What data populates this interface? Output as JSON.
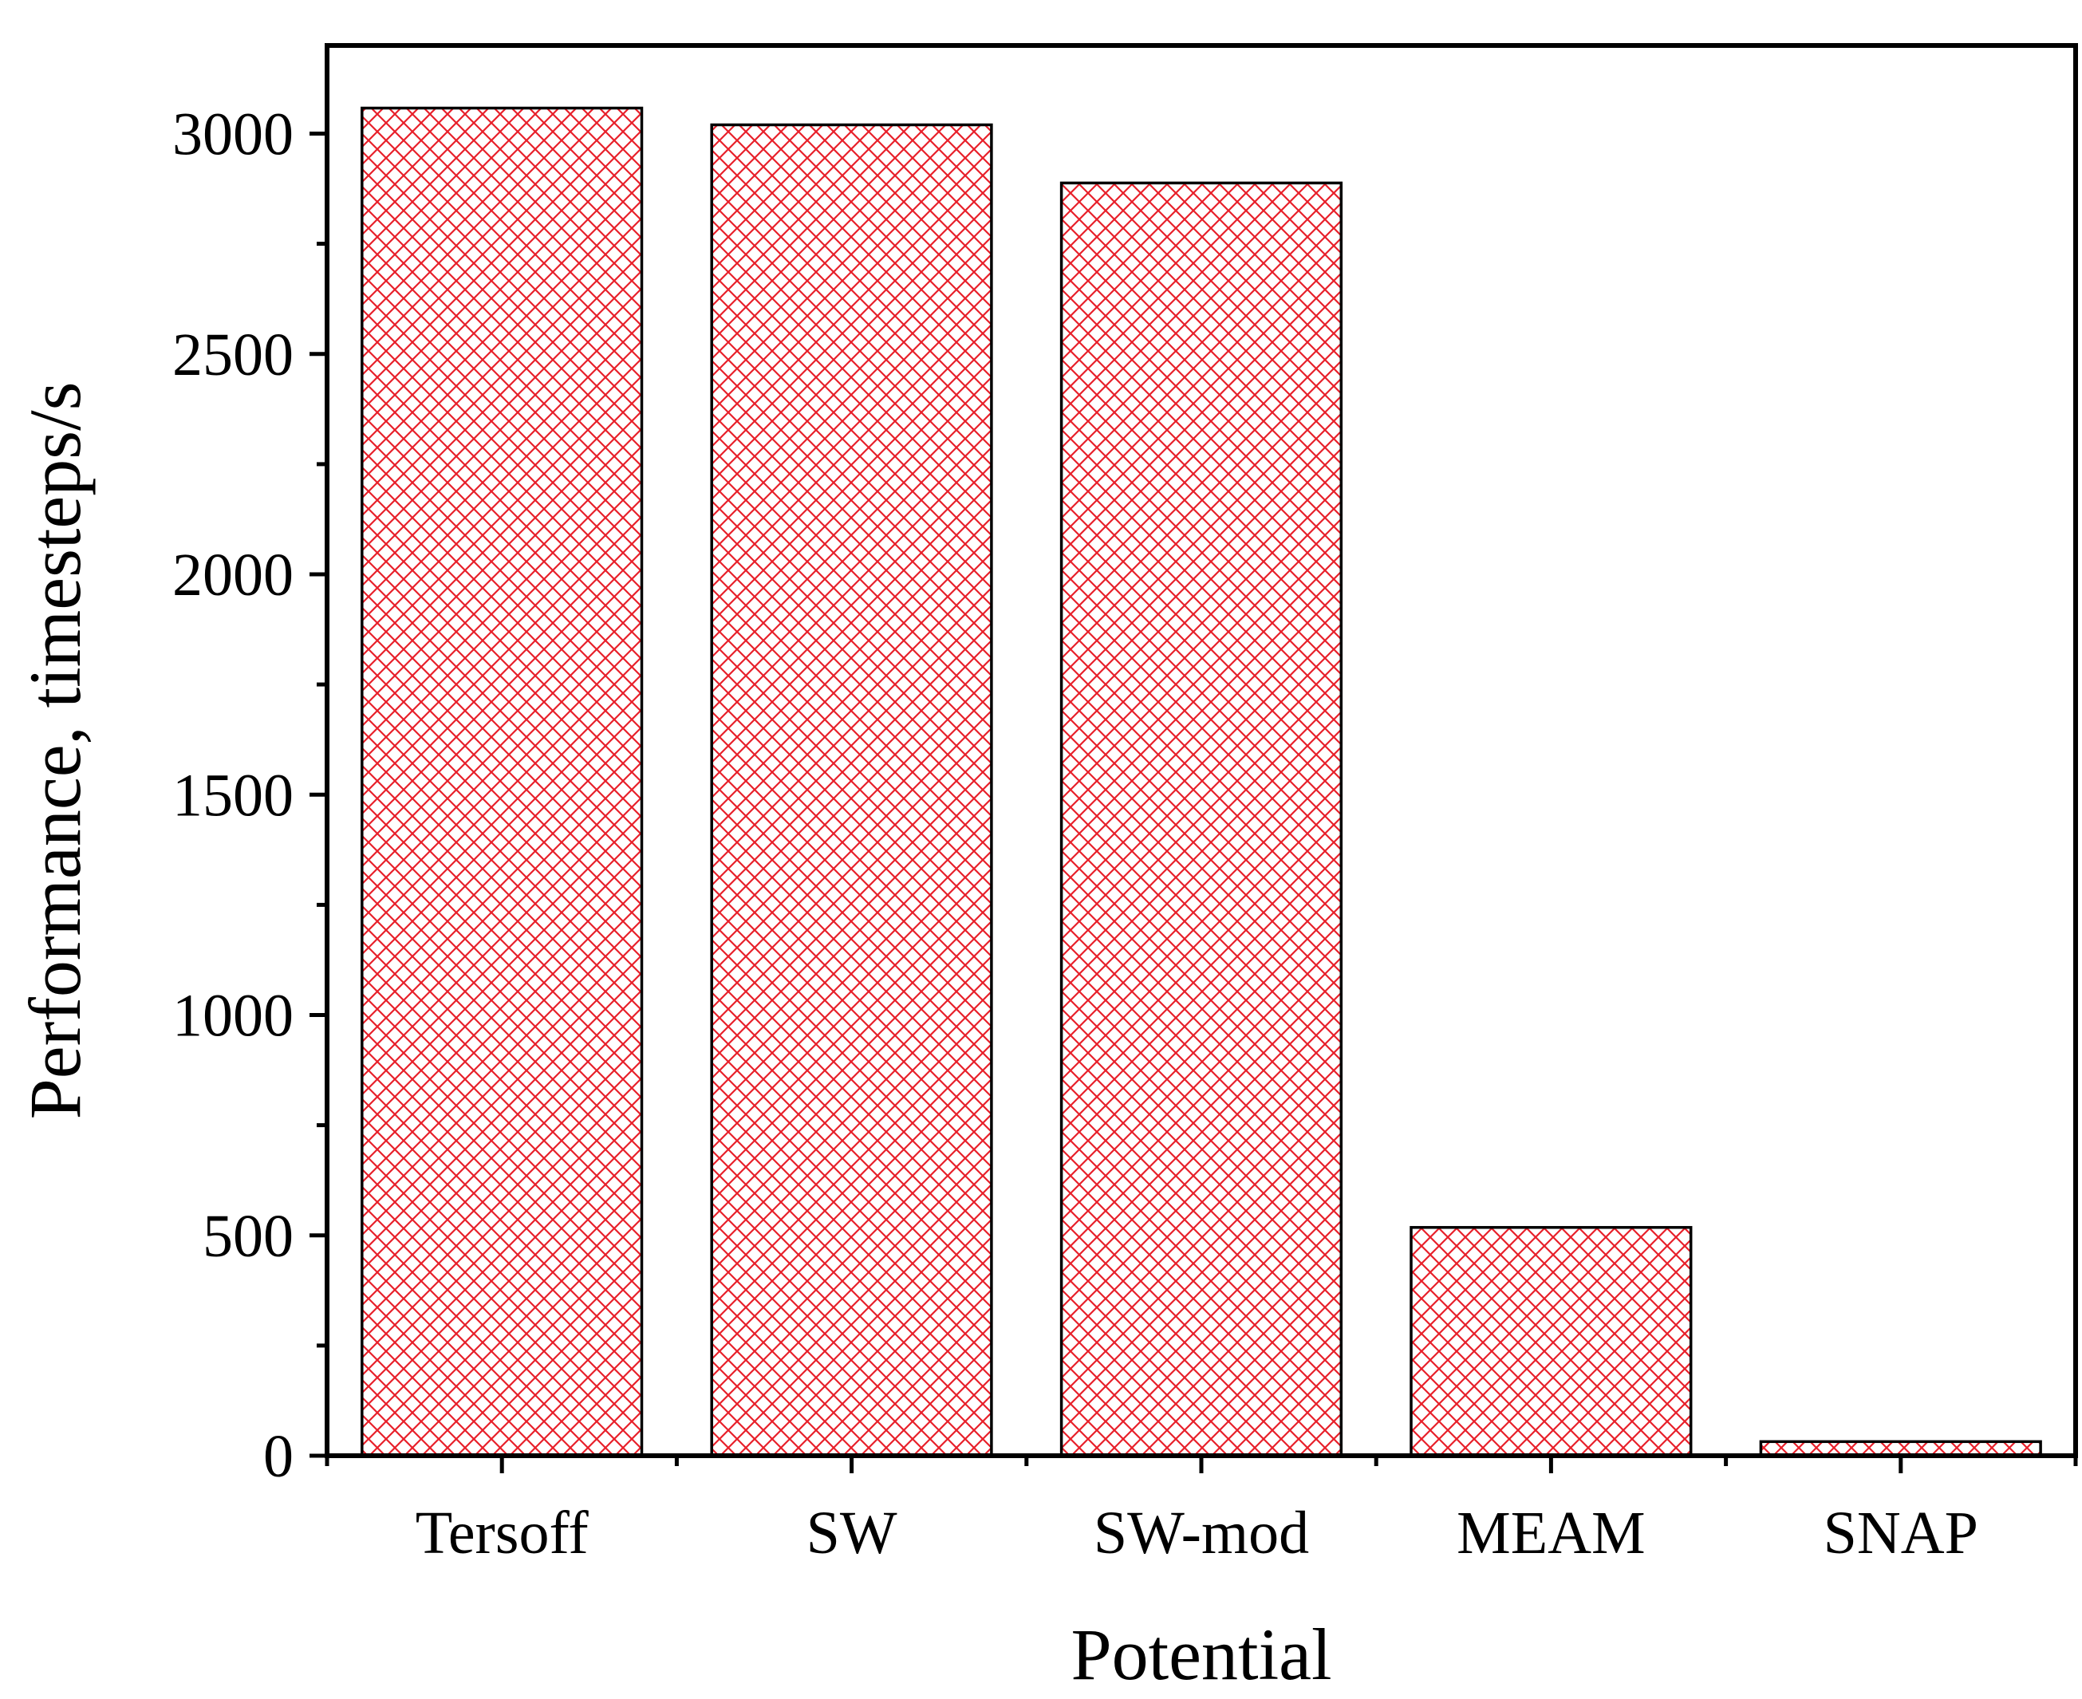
{
  "chart_data": {
    "type": "bar",
    "title": "",
    "xlabel": "Potential",
    "ylabel": "Performance, timesteps/s",
    "categories": [
      "Tersoff",
      "SW",
      "SW-mod",
      "MEAM",
      "SNAP"
    ],
    "values": [
      3058,
      3020,
      2888,
      518,
      32
    ],
    "ylim": [
      0,
      3200
    ],
    "yticks": [
      0,
      500,
      1000,
      1500,
      2000,
      2500,
      3000
    ],
    "ytick_labels": [
      "0",
      "500",
      "1000",
      "1500",
      "2000",
      "2500",
      "3000"
    ],
    "y_minor_step": 250,
    "grid": false,
    "legend": "none",
    "bar_fill": "crosshatch",
    "colors": {
      "hatch": "#e8202a",
      "bar_edge": "#000000",
      "axis": "#000000",
      "background": "#ffffff"
    }
  }
}
